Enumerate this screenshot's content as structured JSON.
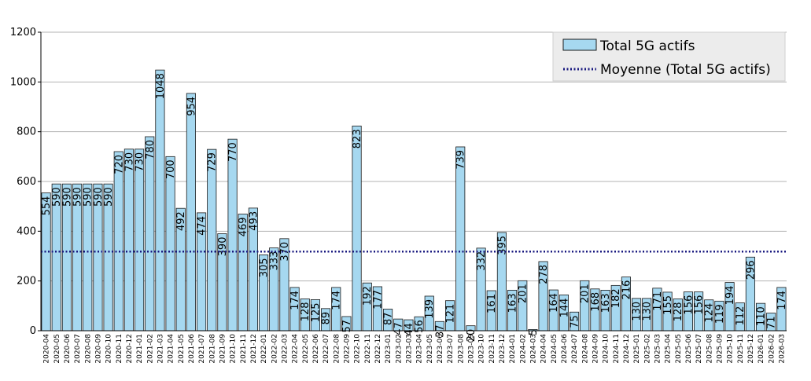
{
  "chart_data": {
    "type": "bar",
    "categories": [
      "2020-04",
      "2020-05",
      "2020-06",
      "2020-07",
      "2020-08",
      "2020-09",
      "2020-10",
      "2020-11",
      "2020-12",
      "2021-01",
      "2021-02",
      "2021-03",
      "2021-04",
      "2021-05",
      "2021-06",
      "2021-07",
      "2021-08",
      "2021-09",
      "2021-10",
      "2021-11",
      "2021-12",
      "2022-01",
      "2022-02",
      "2022-03",
      "2022-04",
      "2022-05",
      "2022-06",
      "2022-07",
      "2022-08",
      "2022-09",
      "2022-10",
      "2022-11",
      "2022-12",
      "2023-01",
      "2023-02",
      "2023-03",
      "2023-04",
      "2023-05",
      "2023-06",
      "2023-07",
      "2023-08",
      "2023-09",
      "2023-10",
      "2023-11",
      "2023-12",
      "2024-01",
      "2024-02",
      "2024-03",
      "2024-04",
      "2024-05",
      "2024-06",
      "2024-07",
      "2024-08",
      "2024-09",
      "2024-10",
      "2024-11",
      "2024-12",
      "2025-01",
      "2025-02",
      "2025-03",
      "2025-04",
      "2025-05",
      "2025-06",
      "2025-07",
      "2025-08",
      "2025-09",
      "2025-10",
      "2025-11",
      "2025-12",
      "2026-01",
      "2026-02",
      "2026-03"
    ],
    "series": [
      {
        "name": "Total 5G actifs",
        "values": [
          554,
          590,
          590,
          590,
          590,
          590,
          590,
          720,
          730,
          730,
          780,
          1048,
          700,
          492,
          954,
          474,
          729,
          390,
          770,
          469,
          493,
          305,
          333,
          370,
          174,
          128,
          125,
          89,
          174,
          57,
          823,
          192,
          177,
          87,
          47,
          44,
          56,
          139,
          37,
          121,
          739,
          20,
          332,
          161,
          395,
          163,
          201,
          5,
          278,
          164,
          144,
          75,
          201,
          168,
          163,
          182,
          216,
          130,
          130,
          171,
          155,
          128,
          156,
          156,
          124,
          119,
          194,
          112,
          296,
          110,
          71,
          174
        ]
      }
    ],
    "average": {
      "name": "Moyenne (Total 5G actifs)",
      "value": 318
    },
    "ylim": [
      0,
      1200
    ],
    "yticks": [
      0,
      200,
      400,
      600,
      800,
      1000,
      1200
    ],
    "grid": "horizontal",
    "legend": "top-right",
    "colors": {
      "bar_fill": "#a6d8f0",
      "bar_stroke": "#1a1a1a",
      "average_line": "#1a1a80",
      "grid": "#b3b3b3"
    }
  }
}
